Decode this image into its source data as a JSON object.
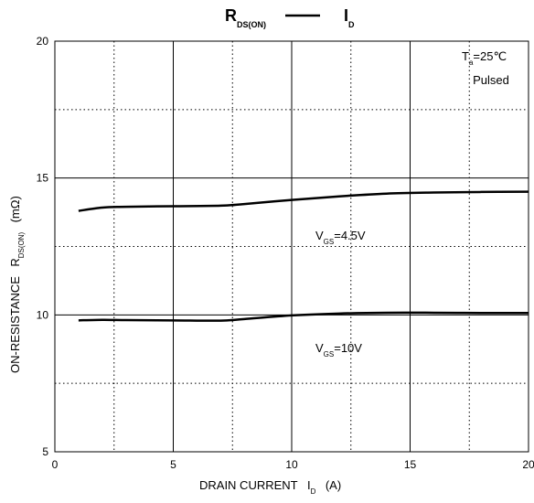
{
  "chart_data": {
    "type": "line",
    "title_parts": [
      [
        "R",
        "DS(ON)"
      ],
      [
        "I",
        "D"
      ]
    ],
    "xlabel_parts": [
      "DRAIN CURRENT",
      "I",
      "D",
      "(A)"
    ],
    "ylabel_parts": [
      "ON-RESISTANCE",
      "R",
      "DS(ON)",
      "(mΩ)"
    ],
    "annotations": [
      [
        "T",
        "a",
        "=25℃"
      ],
      [
        "Pulsed"
      ]
    ],
    "x": [
      1,
      2,
      3,
      5,
      7,
      8,
      10,
      12,
      14,
      16,
      18,
      20
    ],
    "series": [
      {
        "label_parts": [
          "V",
          "GS",
          "=4.5V"
        ],
        "color": "#000000",
        "values": [
          13.8,
          13.92,
          13.95,
          13.97,
          13.99,
          14.05,
          14.2,
          14.33,
          14.43,
          14.47,
          14.49,
          14.5
        ]
      },
      {
        "label_parts": [
          "V",
          "GS",
          "=10V"
        ],
        "color": "#000000",
        "values": [
          9.8,
          9.82,
          9.81,
          9.8,
          9.79,
          9.85,
          9.98,
          10.05,
          10.08,
          10.08,
          10.07,
          10.07
        ]
      }
    ],
    "xlim": [
      0,
      20
    ],
    "ylim": [
      5,
      20
    ],
    "xticks": [
      0,
      5,
      10,
      15,
      20
    ],
    "yticks": [
      5,
      10,
      15,
      20
    ],
    "minor_xticks": [
      2.5,
      7.5,
      12.5,
      17.5
    ],
    "minor_yticks": [
      7.5,
      12.5,
      17.5
    ],
    "grid": true
  }
}
